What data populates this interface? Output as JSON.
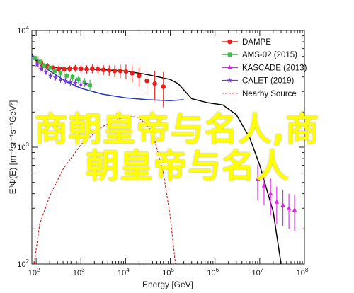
{
  "chart_data": {
    "type": "scatter",
    "xlabel": "Energy [GeV]",
    "ylabel": "E³Φ(E) [m⁻²sr⁻¹s⁻¹GeV²]",
    "x_scale": "log",
    "y_scale": "log",
    "xlim": [
      80,
      100000000.0
    ],
    "ylim": [
      100,
      10000
    ],
    "x_ticks": [
      {
        "v": 100.0,
        "base": "10",
        "exp": "2"
      },
      {
        "v": 1000.0,
        "base": "10",
        "exp": "3"
      },
      {
        "v": 10000.0,
        "base": "10",
        "exp": "4"
      },
      {
        "v": 100000.0,
        "base": "10",
        "exp": "5"
      },
      {
        "v": 1000000.0,
        "base": "10",
        "exp": "6"
      },
      {
        "v": 10000000.0,
        "base": "10",
        "exp": "7"
      },
      {
        "v": 100000000.0,
        "base": "10",
        "exp": "8"
      }
    ],
    "y_ticks": [
      {
        "v": 100.0,
        "base": "10",
        "exp": "2"
      },
      {
        "v": 1000.0,
        "base": "10",
        "exp": "3"
      },
      {
        "v": 10000.0,
        "base": "10",
        "exp": "4"
      }
    ],
    "legend_position": "top-right",
    "series": [
      {
        "name": "DAMPE",
        "color": "#e8201b",
        "marker": "circle",
        "points": [
          [
            110,
            5300,
            700
          ],
          [
            140,
            5000,
            500
          ],
          [
            180,
            4900,
            350
          ],
          [
            240,
            4750,
            300
          ],
          [
            320,
            4700,
            300
          ],
          [
            420,
            4650,
            300
          ],
          [
            560,
            4700,
            300
          ],
          [
            750,
            4750,
            330
          ],
          [
            1000,
            4700,
            350
          ],
          [
            1350,
            4650,
            380
          ],
          [
            1800,
            4700,
            400
          ],
          [
            2400,
            4650,
            420
          ],
          [
            3200,
            4600,
            440
          ],
          [
            4300,
            4550,
            470
          ],
          [
            5700,
            4500,
            520
          ],
          [
            7600,
            4500,
            600
          ],
          [
            10200,
            4450,
            650
          ],
          [
            14000,
            4300,
            700
          ],
          [
            20000,
            4100,
            800
          ],
          [
            30000,
            3700,
            900
          ],
          [
            45000,
            3500,
            1000
          ],
          [
            70000,
            3300,
            1100
          ]
        ]
      },
      {
        "name": "AMS-02 (2015)",
        "color": "#3fbf48",
        "marker": "square",
        "points": [
          [
            95,
            5800,
            300
          ],
          [
            120,
            5400,
            260
          ],
          [
            150,
            5000,
            240
          ],
          [
            200,
            4800,
            220
          ],
          [
            260,
            4500,
            220
          ],
          [
            350,
            4300,
            230
          ],
          [
            480,
            4100,
            240
          ],
          [
            650,
            4000,
            270
          ],
          [
            880,
            3800,
            290
          ],
          [
            1200,
            3600,
            330
          ],
          [
            1600,
            3400,
            380
          ]
        ]
      },
      {
        "name": "KASCADE (2013)",
        "color": "#e41ef0",
        "marker": "triangle",
        "points": [
          [
            9000000.0,
            530,
            180
          ],
          [
            12500000.0,
            470,
            150
          ],
          [
            17500000.0,
            400,
            140
          ],
          [
            24000000.0,
            340,
            120
          ],
          [
            33000000.0,
            320,
            110
          ],
          [
            45000000.0,
            300,
            100
          ],
          [
            60000000.0,
            290,
            100
          ]
        ]
      },
      {
        "name": "CALET (2019)",
        "color": "#7a38d8",
        "marker": "star",
        "points": [
          [
            105,
            5100,
            260
          ],
          [
            130,
            4700,
            240
          ],
          [
            165,
            4400,
            230
          ],
          [
            210,
            4100,
            220
          ],
          [
            270,
            3950,
            220
          ],
          [
            350,
            3800,
            230
          ],
          [
            450,
            3700,
            240
          ],
          [
            580,
            3600,
            250
          ],
          [
            750,
            3550,
            270
          ],
          [
            1000,
            3450,
            300
          ],
          [
            1300,
            3500,
            330
          ]
        ]
      }
    ],
    "lines": [
      {
        "name": "",
        "color": "#000000",
        "style": "solid",
        "points": [
          [
            80,
            6300
          ],
          [
            100,
            5500
          ],
          [
            200,
            4900
          ],
          [
            500,
            4700
          ],
          [
            2000,
            4650
          ],
          [
            10000,
            4500
          ],
          [
            30000,
            4200
          ],
          [
            100000,
            3800
          ],
          [
            150000,
            3500
          ],
          [
            300000,
            2600
          ],
          [
            700000,
            2400
          ],
          [
            1500000,
            2300
          ],
          [
            3000000,
            1900
          ],
          [
            6000000,
            1200
          ],
          [
            10000000,
            700
          ],
          [
            20000000,
            280
          ],
          [
            30000000,
            100
          ]
        ]
      },
      {
        "name": "",
        "color": "#2634c8",
        "style": "solid",
        "points": [
          [
            80,
            6100
          ],
          [
            200,
            4500
          ],
          [
            500,
            3600
          ],
          [
            1000,
            3200
          ],
          [
            3000,
            2850
          ],
          [
            10000,
            2650
          ],
          [
            30000,
            2550
          ],
          [
            100000,
            2500
          ],
          [
            200000,
            2550
          ]
        ]
      },
      {
        "name": "Nearby Source",
        "color": "#d22222",
        "style": "dashed",
        "points": [
          [
            90,
            100
          ],
          [
            120,
            220
          ],
          [
            200,
            380
          ],
          [
            400,
            650
          ],
          [
            1000,
            1050
          ],
          [
            3000,
            1500
          ],
          [
            10000,
            1850
          ],
          [
            20000,
            1800
          ],
          [
            40000,
            1350
          ],
          [
            70000,
            600
          ],
          [
            100000,
            250
          ],
          [
            130000,
            100
          ]
        ]
      }
    ]
  },
  "overlay": {
    "line1": "商朝皇帝与名人,商",
    "line2": "朝皇帝与名人"
  }
}
